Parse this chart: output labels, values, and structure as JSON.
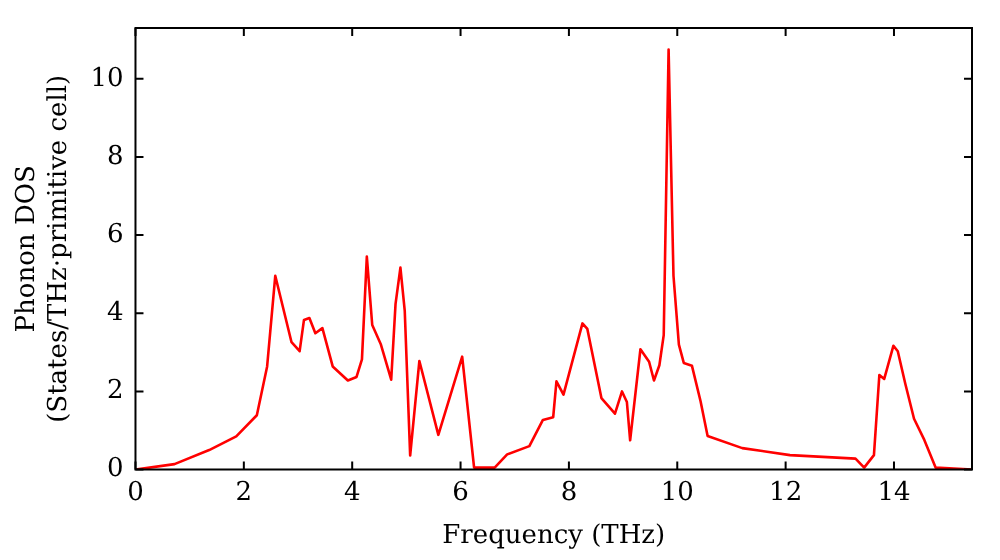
{
  "chart_data": {
    "type": "line",
    "xlabel": "Frequency (THz)",
    "ylabel": "Phonon DOS\n(States/THz·primitive cell)",
    "xlim": [
      0,
      15.44
    ],
    "ylim": [
      0,
      11.3
    ],
    "xticks": [
      0,
      2,
      4,
      6,
      8,
      10,
      12,
      14
    ],
    "yticks": [
      0,
      2,
      4,
      6,
      8,
      10
    ],
    "grid": false,
    "legend": false,
    "marker": "none",
    "line_style": "solid",
    "series": [
      {
        "color": "#ff0000",
        "x": [
          0,
          0.72,
          1.36,
          1.86,
          2.24,
          2.43,
          2.58,
          2.88,
          3.03,
          3.11,
          3.21,
          3.32,
          3.45,
          3.64,
          3.92,
          4.08,
          4.18,
          4.27,
          4.37,
          4.53,
          4.72,
          4.8,
          4.89,
          4.97,
          5.07,
          5.24,
          5.59,
          6.03,
          6.25,
          6.63,
          6.86,
          7.27,
          7.52,
          7.71,
          7.77,
          7.9,
          8.25,
          8.34,
          8.6,
          8.85,
          8.98,
          9.07,
          9.13,
          9.32,
          9.48,
          9.57,
          9.67,
          9.75,
          9.84,
          9.93,
          10.03,
          10.12,
          10.27,
          10.43,
          10.56,
          11.2,
          12.08,
          13.29,
          13.45,
          13.63,
          13.73,
          13.82,
          13.99,
          14.07,
          14.21,
          14.37,
          14.56,
          14.77,
          15.44
        ],
        "values": [
          0,
          0.14,
          0.5,
          0.85,
          1.39,
          2.64,
          4.96,
          3.26,
          3.03,
          3.83,
          3.88,
          3.49,
          3.62,
          2.64,
          2.28,
          2.37,
          2.82,
          5.45,
          3.7,
          3.2,
          2.3,
          4.24,
          5.17,
          4.06,
          0.36,
          2.78,
          0.89,
          2.89,
          0.05,
          0.05,
          0.39,
          0.6,
          1.27,
          1.34,
          2.26,
          1.92,
          3.74,
          3.6,
          1.83,
          1.43,
          2.0,
          1.73,
          0.75,
          3.08,
          2.76,
          2.28,
          2.67,
          3.44,
          10.75,
          4.96,
          3.2,
          2.73,
          2.66,
          1.75,
          0.86,
          0.55,
          0.37,
          0.28,
          0.05,
          0.37,
          2.42,
          2.32,
          3.17,
          3.03,
          2.19,
          1.3,
          0.76,
          0.05,
          0
        ]
      }
    ]
  }
}
